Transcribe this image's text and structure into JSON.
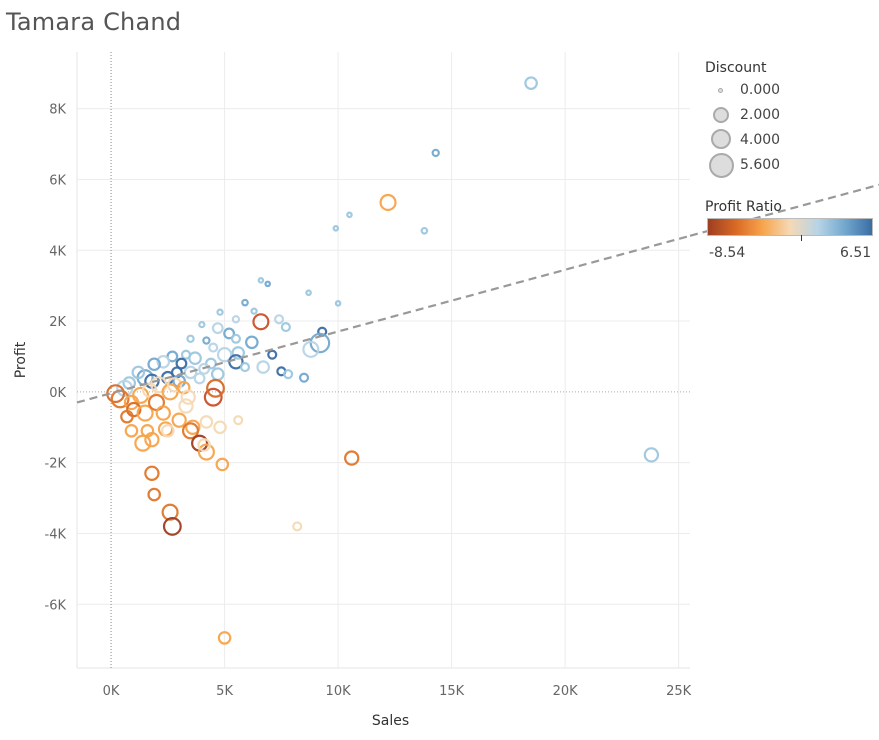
{
  "title": "Tamara Chand",
  "legend": {
    "discount_title": "Discount",
    "discount_items": [
      {
        "label": "0.000"
      },
      {
        "label": "2.000"
      },
      {
        "label": "4.000"
      },
      {
        "label": "5.600"
      }
    ],
    "ratio_title": "Profit Ratio",
    "ratio_min": "-8.54",
    "ratio_max": "6.51",
    "ramp_colors": [
      "#9e3d22",
      "#d96a25",
      "#f7a34a",
      "#f5d9b5",
      "#b7d4e6",
      "#74a9cf",
      "#3a6da4"
    ]
  },
  "chart_data": {
    "type": "scatter",
    "title": "Tamara Chand",
    "xlabel": "Sales",
    "ylabel": "Profit",
    "xlim": [
      -1500,
      25500
    ],
    "ylim": [
      -7800,
      9600
    ],
    "xticks": [
      0,
      5000,
      10000,
      15000,
      20000,
      25000
    ],
    "xtick_labels": [
      "0K",
      "5K",
      "10K",
      "15K",
      "20K",
      "25K"
    ],
    "yticks": [
      -6000,
      -4000,
      -2000,
      0,
      2000,
      4000,
      6000,
      8000
    ],
    "ytick_labels": [
      "-6K",
      "-4K",
      "-2K",
      "0K",
      "2K",
      "4K",
      "6K",
      "8K"
    ],
    "grid": true,
    "trend_line": {
      "x": [
        -1500,
        25500
      ],
      "y": [
        -300,
        4400
      ],
      "style": "dashed",
      "color": "#999999"
    },
    "points": [
      {
        "x": 18500,
        "y": 8720,
        "d": 2,
        "c": "#9cc7de"
      },
      {
        "x": 14300,
        "y": 6750,
        "d": 0.5,
        "c": "#74a9cf"
      },
      {
        "x": 12200,
        "y": 5350,
        "d": 3,
        "c": "#f7a34a"
      },
      {
        "x": 10500,
        "y": 5000,
        "d": 0,
        "c": "#9cc7de"
      },
      {
        "x": 9900,
        "y": 4620,
        "d": 0,
        "c": "#9cc7de"
      },
      {
        "x": 13800,
        "y": 4550,
        "d": 0.3,
        "c": "#9cc7de"
      },
      {
        "x": 6600,
        "y": 3150,
        "d": 0,
        "c": "#9cc7de"
      },
      {
        "x": 6900,
        "y": 3050,
        "d": 0,
        "c": "#74a9cf"
      },
      {
        "x": 8700,
        "y": 2800,
        "d": 0,
        "c": "#9cc7de"
      },
      {
        "x": 5900,
        "y": 2520,
        "d": 0.3,
        "c": "#74a9cf"
      },
      {
        "x": 10000,
        "y": 2500,
        "d": 0,
        "c": "#9cc7de"
      },
      {
        "x": 6300,
        "y": 2280,
        "d": 0.2,
        "c": "#9cc7de"
      },
      {
        "x": 4800,
        "y": 2250,
        "d": 0.2,
        "c": "#9cc7de"
      },
      {
        "x": 6600,
        "y": 1980,
        "d": 3,
        "c": "#c9502a"
      },
      {
        "x": 7400,
        "y": 2050,
        "d": 1,
        "c": "#b7d4e6"
      },
      {
        "x": 7700,
        "y": 1830,
        "d": 1,
        "c": "#9cc7de"
      },
      {
        "x": 5500,
        "y": 2050,
        "d": 0.5,
        "c": "#b7d4e6"
      },
      {
        "x": 4000,
        "y": 1900,
        "d": 0.2,
        "c": "#9cc7de"
      },
      {
        "x": 4700,
        "y": 1800,
        "d": 1.5,
        "c": "#b7d4e6"
      },
      {
        "x": 9300,
        "y": 1700,
        "d": 1,
        "c": "#3a6da4"
      },
      {
        "x": 9200,
        "y": 1380,
        "d": 4,
        "c": "#74a9cf"
      },
      {
        "x": 8800,
        "y": 1200,
        "d": 3,
        "c": "#b7d4e6"
      },
      {
        "x": 5200,
        "y": 1650,
        "d": 1.5,
        "c": "#74a9cf"
      },
      {
        "x": 5500,
        "y": 1500,
        "d": 1,
        "c": "#9cc7de"
      },
      {
        "x": 6200,
        "y": 1400,
        "d": 2,
        "c": "#74a9cf"
      },
      {
        "x": 4200,
        "y": 1450,
        "d": 0.5,
        "c": "#74a9cf"
      },
      {
        "x": 3500,
        "y": 1500,
        "d": 0.5,
        "c": "#9cc7de"
      },
      {
        "x": 4500,
        "y": 1250,
        "d": 1,
        "c": "#b7d4e6"
      },
      {
        "x": 5600,
        "y": 1100,
        "d": 2,
        "c": "#9cc7de"
      },
      {
        "x": 5000,
        "y": 1050,
        "d": 2.5,
        "c": "#b7d4e6"
      },
      {
        "x": 6700,
        "y": 700,
        "d": 2,
        "c": "#b7d4e6"
      },
      {
        "x": 7100,
        "y": 1050,
        "d": 1,
        "c": "#3a6da4"
      },
      {
        "x": 7500,
        "y": 580,
        "d": 1,
        "c": "#3a6da4"
      },
      {
        "x": 7800,
        "y": 500,
        "d": 1,
        "c": "#9cc7de"
      },
      {
        "x": 8500,
        "y": 400,
        "d": 1,
        "c": "#74a9cf"
      },
      {
        "x": 5500,
        "y": 850,
        "d": 2.5,
        "c": "#3a6da4"
      },
      {
        "x": 4400,
        "y": 800,
        "d": 1.5,
        "c": "#9cc7de"
      },
      {
        "x": 5900,
        "y": 700,
        "d": 1,
        "c": "#9cc7de"
      },
      {
        "x": 3300,
        "y": 1050,
        "d": 1,
        "c": "#9cc7de"
      },
      {
        "x": 3700,
        "y": 950,
        "d": 2,
        "c": "#9cc7de"
      },
      {
        "x": 3100,
        "y": 800,
        "d": 1.5,
        "c": "#3a6da4"
      },
      {
        "x": 2700,
        "y": 1000,
        "d": 1.5,
        "c": "#74a9cf"
      },
      {
        "x": 2300,
        "y": 850,
        "d": 2,
        "c": "#b7d4e6"
      },
      {
        "x": 1900,
        "y": 780,
        "d": 2,
        "c": "#74a9cf"
      },
      {
        "x": 4100,
        "y": 650,
        "d": 1.5,
        "c": "#b7d4e6"
      },
      {
        "x": 3500,
        "y": 550,
        "d": 2,
        "c": "#b7d4e6"
      },
      {
        "x": 2900,
        "y": 550,
        "d": 1.5,
        "c": "#3a6da4"
      },
      {
        "x": 4700,
        "y": 500,
        "d": 2,
        "c": "#9cc7de"
      },
      {
        "x": 1500,
        "y": 400,
        "d": 3,
        "c": "#74a9cf"
      },
      {
        "x": 1200,
        "y": 550,
        "d": 2,
        "c": "#9cc7de"
      },
      {
        "x": 2500,
        "y": 400,
        "d": 2,
        "c": "#3a6da4"
      },
      {
        "x": 3000,
        "y": 300,
        "d": 2,
        "c": "#74a9cf"
      },
      {
        "x": 3900,
        "y": 380,
        "d": 1.5,
        "c": "#b7d4e6"
      },
      {
        "x": 1800,
        "y": 300,
        "d": 2.5,
        "c": "#3a6da4"
      },
      {
        "x": 800,
        "y": 250,
        "d": 2,
        "c": "#9cc7de"
      },
      {
        "x": 600,
        "y": 100,
        "d": 3,
        "c": "#b7d4e6"
      },
      {
        "x": 200,
        "y": -50,
        "d": 3.5,
        "c": "#d96a25"
      },
      {
        "x": 400,
        "y": -200,
        "d": 3.5,
        "c": "#e0762a"
      },
      {
        "x": 900,
        "y": -300,
        "d": 2.5,
        "c": "#f7a34a"
      },
      {
        "x": 1300,
        "y": -100,
        "d": 3,
        "c": "#f7a34a"
      },
      {
        "x": 1700,
        "y": 50,
        "d": 2.5,
        "c": "#f5d9b5"
      },
      {
        "x": 2100,
        "y": 200,
        "d": 3,
        "c": "#f5d9b5"
      },
      {
        "x": 2600,
        "y": 0,
        "d": 3,
        "c": "#f7a34a"
      },
      {
        "x": 2800,
        "y": 200,
        "d": 2.5,
        "c": "#f5d9b5"
      },
      {
        "x": 3200,
        "y": 120,
        "d": 2,
        "c": "#f7a34a"
      },
      {
        "x": 3400,
        "y": -150,
        "d": 2.5,
        "c": "#f5d9b5"
      },
      {
        "x": 4500,
        "y": -150,
        "d": 3.5,
        "c": "#c9502a"
      },
      {
        "x": 4600,
        "y": 100,
        "d": 3.5,
        "c": "#d96a25"
      },
      {
        "x": 1000,
        "y": -500,
        "d": 2.5,
        "c": "#d96a25"
      },
      {
        "x": 700,
        "y": -700,
        "d": 2,
        "c": "#e0762a"
      },
      {
        "x": 1500,
        "y": -600,
        "d": 3,
        "c": "#f7a34a"
      },
      {
        "x": 2000,
        "y": -300,
        "d": 3,
        "c": "#e0762a"
      },
      {
        "x": 2300,
        "y": -600,
        "d": 2.5,
        "c": "#f7a34a"
      },
      {
        "x": 3300,
        "y": -400,
        "d": 2.5,
        "c": "#f5d9b5"
      },
      {
        "x": 3000,
        "y": -800,
        "d": 2.5,
        "c": "#f7a34a"
      },
      {
        "x": 3600,
        "y": -1000,
        "d": 2.5,
        "c": "#f7a34a"
      },
      {
        "x": 4200,
        "y": -850,
        "d": 2,
        "c": "#f5d9b5"
      },
      {
        "x": 5600,
        "y": -800,
        "d": 1,
        "c": "#f5d9b5"
      },
      {
        "x": 4800,
        "y": -1000,
        "d": 2,
        "c": "#f5d9b5"
      },
      {
        "x": 2400,
        "y": -1050,
        "d": 2.5,
        "c": "#f7a34a"
      },
      {
        "x": 2500,
        "y": -1100,
        "d": 2,
        "c": "#f5d9b5"
      },
      {
        "x": 1600,
        "y": -1100,
        "d": 2,
        "c": "#f7a34a"
      },
      {
        "x": 900,
        "y": -1100,
        "d": 2,
        "c": "#f7a34a"
      },
      {
        "x": 1800,
        "y": -1350,
        "d": 2.5,
        "c": "#f7a34a"
      },
      {
        "x": 1400,
        "y": -1450,
        "d": 3,
        "c": "#f7a34a"
      },
      {
        "x": 3500,
        "y": -1100,
        "d": 3,
        "c": "#e0762a"
      },
      {
        "x": 3900,
        "y": -1450,
        "d": 3,
        "c": "#9e3d22"
      },
      {
        "x": 4200,
        "y": -1700,
        "d": 3,
        "c": "#f7a34a"
      },
      {
        "x": 4100,
        "y": -1500,
        "d": 2,
        "c": "#f5d9b5"
      },
      {
        "x": 4900,
        "y": -2050,
        "d": 2,
        "c": "#f7a34a"
      },
      {
        "x": 10600,
        "y": -1870,
        "d": 2.5,
        "c": "#e0762a"
      },
      {
        "x": 23800,
        "y": -1780,
        "d": 2.5,
        "c": "#9cc7de"
      },
      {
        "x": 1800,
        "y": -2300,
        "d": 2.5,
        "c": "#e0762a"
      },
      {
        "x": 1900,
        "y": -2900,
        "d": 2,
        "c": "#e0762a"
      },
      {
        "x": 2600,
        "y": -3400,
        "d": 3,
        "c": "#e0762a"
      },
      {
        "x": 2700,
        "y": -3800,
        "d": 3.5,
        "c": "#9e3d22"
      },
      {
        "x": 8200,
        "y": -3800,
        "d": 1,
        "c": "#f5d9b5"
      },
      {
        "x": 5000,
        "y": -6950,
        "d": 2,
        "c": "#f7a34a"
      }
    ]
  }
}
